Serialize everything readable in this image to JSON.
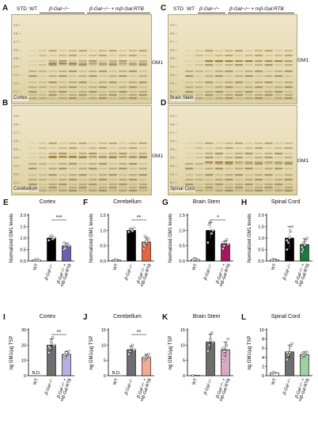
{
  "figure": {
    "panel_letters": [
      "A",
      "B",
      "C",
      "D",
      "E",
      "F",
      "G",
      "H",
      "I",
      "J",
      "K",
      "L"
    ],
    "tlc_header_left": {
      "std": "STD",
      "wt": "WT",
      "bgal": "β-Gal−/−",
      "treated": "β-Gal−/− + mβ-Gal:RTB"
    },
    "tlc_header_right": {
      "std": "STD",
      "wt": "WT",
      "bgal": "β-Gal−/−",
      "treated": "β-Gal−/− + mβ-Gal:RTB"
    },
    "rf_ticks": [
      "0.9",
      "0.8",
      "0.7",
      "0.6",
      "0.5",
      "0.4",
      "0.3",
      "0.2",
      "0.1"
    ],
    "gm1_label": "GM1",
    "tlc_panels": [
      {
        "letter": "A",
        "region": "Cortex"
      },
      {
        "letter": "B",
        "region": "Cerebellum"
      },
      {
        "letter": "C",
        "region": "Brain Stem"
      },
      {
        "letter": "D",
        "region": "Spinal Cord"
      }
    ],
    "x_categories": [
      "WT",
      "β-Gal−/−",
      "β-Gal−/− + mβ-Gal:RTB"
    ],
    "nd_label": "N.D.",
    "colors": {
      "wt": "#ffffff",
      "bgal_dark": "#000000",
      "bgal_gray": "#6e6e6e",
      "cortex": "#6a5fb5",
      "cerebellum": "#e8643c",
      "brainstem": "#a3185f",
      "spinalcord": "#1d7a3c",
      "cortex_light": "#b6b0e3",
      "cerebellum_light": "#f2ad90",
      "brainstem_light": "#d9a9c3",
      "spinalcord_light": "#9ed0a3"
    }
  },
  "chart_data": [
    {
      "letter": "E",
      "type": "bar",
      "title": "Cortex",
      "ylabel": "Normalized GM1 levels",
      "ylim": [
        0,
        2.0
      ],
      "yticks": [
        "0.0",
        "0.5",
        "1.0",
        "1.5",
        "2.0"
      ],
      "categories": [
        "WT",
        "β-Gal−/−",
        "β-Gal−/− + mβ-Gal:RTB"
      ],
      "values": [
        0.04,
        1.0,
        0.66
      ],
      "errors": [
        0.03,
        0.08,
        0.12
      ],
      "points": [
        [
          0.02,
          0.05,
          0.03,
          0.06,
          0.02
        ],
        [
          0.9,
          1.05,
          1.1,
          0.95,
          1.0
        ],
        [
          0.5,
          0.6,
          0.7,
          0.75,
          0.65,
          0.8,
          0.55
        ]
      ],
      "significance": "***",
      "fill": [
        "#ffffff",
        "#000000",
        "#6a5fb5"
      ]
    },
    {
      "letter": "F",
      "type": "bar",
      "title": "Cerebellum",
      "ylabel": "Normalized GM1 levels",
      "ylim": [
        0,
        1.5
      ],
      "yticks": [
        "0.0",
        "0.5",
        "1.0",
        "1.5"
      ],
      "categories": [
        "WT",
        "β-Gal−/−",
        "β-Gal−/− + mβ-Gal:RTB"
      ],
      "values": [
        0.03,
        1.0,
        0.62
      ],
      "errors": [
        0.02,
        0.06,
        0.15
      ],
      "points": [
        [
          0.02,
          0.04,
          0.03
        ],
        [
          0.95,
          1.05,
          1.02,
          0.98,
          1.08
        ],
        [
          0.4,
          0.5,
          0.6,
          0.75,
          0.7,
          0.55,
          0.8,
          0.65
        ]
      ],
      "significance": "**",
      "fill": [
        "#ffffff",
        "#000000",
        "#e8643c"
      ]
    },
    {
      "letter": "G",
      "type": "bar",
      "title": "Brain Stem",
      "ylabel": "Normalized GM1 levels",
      "ylim": [
        0,
        1.5
      ],
      "yticks": [
        "0.0",
        "0.5",
        "1.0",
        "1.5"
      ],
      "categories": [
        "WT",
        "β-Gal−/−",
        "β-Gal−/− + mβ-Gal:RTB"
      ],
      "values": [
        0.05,
        1.0,
        0.56
      ],
      "errors": [
        0.04,
        0.25,
        0.1
      ],
      "points": [
        [
          0.03,
          0.08,
          0.05
        ],
        [
          0.6,
          1.2,
          1.3,
          0.9,
          1.0
        ],
        [
          0.4,
          0.5,
          0.6,
          0.7,
          0.55,
          0.6,
          0.5
        ]
      ],
      "significance": "*",
      "fill": [
        "#ffffff",
        "#000000",
        "#a3185f"
      ]
    },
    {
      "letter": "H",
      "type": "bar",
      "title": "Spinal Cord",
      "ylabel": "Normalized GM1 levels",
      "ylim": [
        0,
        2.0
      ],
      "yticks": [
        "0.0",
        "0.5",
        "1.0",
        "1.5",
        "2.0"
      ],
      "categories": [
        "WT",
        "β-Gal−/−",
        "β-Gal−/− + mβ-Gal:RTB"
      ],
      "values": [
        0.05,
        1.0,
        0.72
      ],
      "errors": [
        0.04,
        0.5,
        0.25
      ],
      "points": [
        [
          0.03,
          0.08,
          0.04
        ],
        [
          0.5,
          0.8,
          1.0,
          1.3,
          1.5,
          0.9
        ],
        [
          0.4,
          0.5,
          0.7,
          0.9,
          1.0,
          0.6,
          0.8
        ]
      ],
      "significance": "",
      "fill": [
        "#ffffff",
        "#000000",
        "#1d7a3c"
      ]
    },
    {
      "letter": "I",
      "type": "bar",
      "title": "Cortex",
      "ylabel": "ng GM1/µg TSP",
      "ylim": [
        0,
        30
      ],
      "yticks": [
        "0",
        "10",
        "20",
        "30"
      ],
      "categories": [
        "WT",
        "β-Gal−/−",
        "β-Gal−/− + mβ-Gal:RTB"
      ],
      "values": [
        0,
        20,
        14
      ],
      "errors": [
        0,
        4,
        2
      ],
      "points": [
        [],
        [
          15,
          18,
          22,
          25,
          20,
          19
        ],
        [
          11,
          12,
          14,
          15,
          16,
          13,
          14,
          15
        ]
      ],
      "significance": "**",
      "nd": true,
      "fill": [
        "#ffffff",
        "#6e6e6e",
        "#b6b0e3"
      ]
    },
    {
      "letter": "J",
      "type": "bar",
      "title": "Cerebellum",
      "ylabel": "ng GM1/µg TSP",
      "ylim": [
        0,
        15
      ],
      "yticks": [
        "0",
        "5",
        "10",
        "15"
      ],
      "categories": [
        "WT",
        "β-Gal−/−",
        "β-Gal−/− + mβ-Gal:RTB"
      ],
      "values": [
        0,
        8.5,
        6.0
      ],
      "errors": [
        0,
        1.2,
        1.0
      ],
      "points": [
        [],
        [
          7,
          8,
          9,
          10,
          8.5
        ],
        [
          5,
          5.5,
          6,
          6.5,
          7,
          5.8,
          6.2
        ]
      ],
      "significance": "**",
      "nd": true,
      "fill": [
        "#ffffff",
        "#6e6e6e",
        "#f2ad90"
      ]
    },
    {
      "letter": "K",
      "type": "bar",
      "title": "Brain Stem",
      "ylabel": "ng GM1/µg TSP",
      "ylim": [
        0,
        15
      ],
      "yticks": [
        "0",
        "5",
        "10",
        "15"
      ],
      "categories": [
        "WT",
        "β-Gal−/−",
        "β-Gal−/− + mβ-Gal:RTB"
      ],
      "values": [
        0.1,
        11.0,
        8.5
      ],
      "errors": [
        0,
        2.5,
        2.5
      ],
      "points": [
        [
          0.1
        ],
        [
          8,
          10,
          12,
          14,
          11
        ],
        [
          5,
          7,
          8,
          10,
          12,
          9,
          8
        ]
      ],
      "significance": "",
      "fill": [
        "#ffffff",
        "#6e6e6e",
        "#d9a9c3"
      ]
    },
    {
      "letter": "L",
      "type": "bar",
      "title": "Spinal Cord",
      "ylabel": "ng GM1/µg TSP",
      "ylim": [
        0,
        10
      ],
      "yticks": [
        "0",
        "2",
        "4",
        "6",
        "8",
        "10"
      ],
      "categories": [
        "WT",
        "β-Gal−/−",
        "β-Gal−/− + mβ-Gal:RTB"
      ],
      "values": [
        0.6,
        5.2,
        4.6
      ],
      "errors": [
        0.1,
        1.5,
        0.6
      ],
      "points": [
        [
          0.5,
          0.7,
          0.6
        ],
        [
          3.5,
          4.5,
          5,
          6.5,
          7,
          5
        ],
        [
          4,
          4.3,
          4.6,
          5,
          5.2,
          4.8,
          4.4
        ]
      ],
      "significance": "",
      "fill": [
        "#ffffff",
        "#6e6e6e",
        "#9ed0a3"
      ]
    }
  ]
}
